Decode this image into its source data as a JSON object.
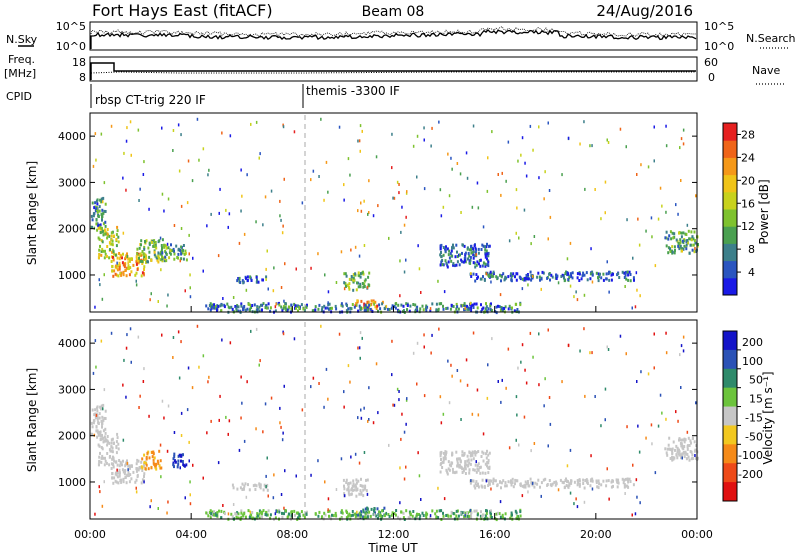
{
  "header": {
    "station": "Fort Hays East (fitACF)",
    "beam": "Beam 08",
    "date": "24/Aug/2016"
  },
  "top_panels": {
    "nsky_label": "N.Sky",
    "nsearch_label": "N.Search",
    "noise_ticks": [
      "10^5",
      "10^0"
    ],
    "freq_label_1": "Freq.",
    "freq_label_2": "[MHz]",
    "freq_ticks": [
      "18",
      "8"
    ],
    "nave_label": "Nave",
    "nave_ticks": [
      "60",
      "0"
    ],
    "cpid_label": "CPID",
    "cpid_segments": [
      {
        "start_hour": 0.0,
        "label": "rbsp CT-trig 220 IF"
      },
      {
        "start_hour": 8.8,
        "label": "themis -3300 IF"
      }
    ]
  },
  "chart_data": [
    {
      "type": "heatmap",
      "name": "power",
      "ylabel": "Slant Range [km]",
      "xlim": [
        0,
        24
      ],
      "ylim": [
        200,
        4500
      ],
      "yticks": [
        1000,
        2000,
        3000,
        4000
      ],
      "colorbar": {
        "label": "Power [dB]",
        "ticks": [
          4,
          8,
          12,
          16,
          20,
          24,
          28
        ],
        "range": [
          0,
          30
        ],
        "colors": [
          "#1a1ae6",
          "#2a55c0",
          "#3c7f8a",
          "#4aa050",
          "#7ec22e",
          "#c8d21c",
          "#f0c418",
          "#f59818",
          "#ef6418",
          "#e62020"
        ]
      },
      "regions": [
        {
          "x0": 0.0,
          "x1": 0.6,
          "y0": 2000,
          "y1": 2700,
          "v": 8
        },
        {
          "x0": 0.3,
          "x1": 1.1,
          "y0": 1400,
          "y1": 2100,
          "v": 16
        },
        {
          "x0": 0.8,
          "x1": 2.2,
          "y0": 1000,
          "y1": 1500,
          "v": 22
        },
        {
          "x0": 1.8,
          "x1": 3.0,
          "y0": 1300,
          "y1": 1800,
          "v": 13
        },
        {
          "x0": 2.8,
          "x1": 3.8,
          "y0": 1350,
          "y1": 1700,
          "v": 10
        },
        {
          "x0": 5.6,
          "x1": 7.0,
          "y0": 850,
          "y1": 1000,
          "v": 4
        },
        {
          "x0": 10.0,
          "x1": 11.0,
          "y0": 700,
          "y1": 1100,
          "v": 12
        },
        {
          "x0": 10.4,
          "x1": 11.6,
          "y0": 260,
          "y1": 480,
          "v": 22
        },
        {
          "x0": 13.8,
          "x1": 15.8,
          "y0": 1200,
          "y1": 1700,
          "v": 6
        },
        {
          "x0": 15.0,
          "x1": 21.5,
          "y0": 900,
          "y1": 1100,
          "v": 5
        },
        {
          "x0": 22.7,
          "x1": 24.0,
          "y0": 1500,
          "y1": 2000,
          "v": 10
        },
        {
          "x0": 4.5,
          "x1": 17.0,
          "y0": 220,
          "y1": 420,
          "v": 7
        }
      ]
    },
    {
      "type": "heatmap",
      "name": "velocity",
      "xlabel": "Time UT",
      "ylabel": "Slant Range [km]",
      "xlim": [
        0,
        24
      ],
      "ylim": [
        200,
        4500
      ],
      "xticks": [
        "00:00",
        "04:00",
        "08:00",
        "12:00",
        "16:00",
        "20:00",
        "00:00"
      ],
      "yticks": [
        1000,
        2000,
        3000,
        4000
      ],
      "colorbar": {
        "label": "Velocity [m s⁻¹]",
        "ticks": [
          "200",
          "100",
          "50",
          "15",
          "-15",
          "-50",
          "-100",
          "-200"
        ],
        "colors": [
          "#1414c8",
          "#2b52b6",
          "#2e8a6a",
          "#6cc43c",
          "#c6c6c6",
          "#f2c820",
          "#f58a18",
          "#ee4a18",
          "#e01010"
        ]
      },
      "regions": [
        {
          "x0": 0.0,
          "x1": 0.6,
          "y0": 2000,
          "y1": 2700,
          "v": 0
        },
        {
          "x0": 0.3,
          "x1": 1.1,
          "y0": 1400,
          "y1": 2100,
          "v": 0
        },
        {
          "x0": 0.8,
          "x1": 2.2,
          "y0": 1000,
          "y1": 1500,
          "v": 0
        },
        {
          "x0": 2.0,
          "x1": 2.8,
          "y0": 1300,
          "y1": 1700,
          "v": -40
        },
        {
          "x0": 3.2,
          "x1": 3.8,
          "y0": 1350,
          "y1": 1650,
          "v": 150
        },
        {
          "x0": 5.6,
          "x1": 7.0,
          "y0": 850,
          "y1": 1000,
          "v": 0
        },
        {
          "x0": 10.0,
          "x1": 11.0,
          "y0": 700,
          "y1": 1100,
          "v": 0
        },
        {
          "x0": 10.4,
          "x1": 11.6,
          "y0": 260,
          "y1": 480,
          "v": 70
        },
        {
          "x0": 13.8,
          "x1": 15.8,
          "y0": 1200,
          "y1": 1700,
          "v": 0
        },
        {
          "x0": 15.0,
          "x1": 21.5,
          "y0": 900,
          "y1": 1100,
          "v": 0
        },
        {
          "x0": 22.7,
          "x1": 24.0,
          "y0": 1500,
          "y1": 2000,
          "v": 0
        },
        {
          "x0": 4.5,
          "x1": 17.0,
          "y0": 220,
          "y1": 420,
          "v": 25
        }
      ]
    }
  ]
}
